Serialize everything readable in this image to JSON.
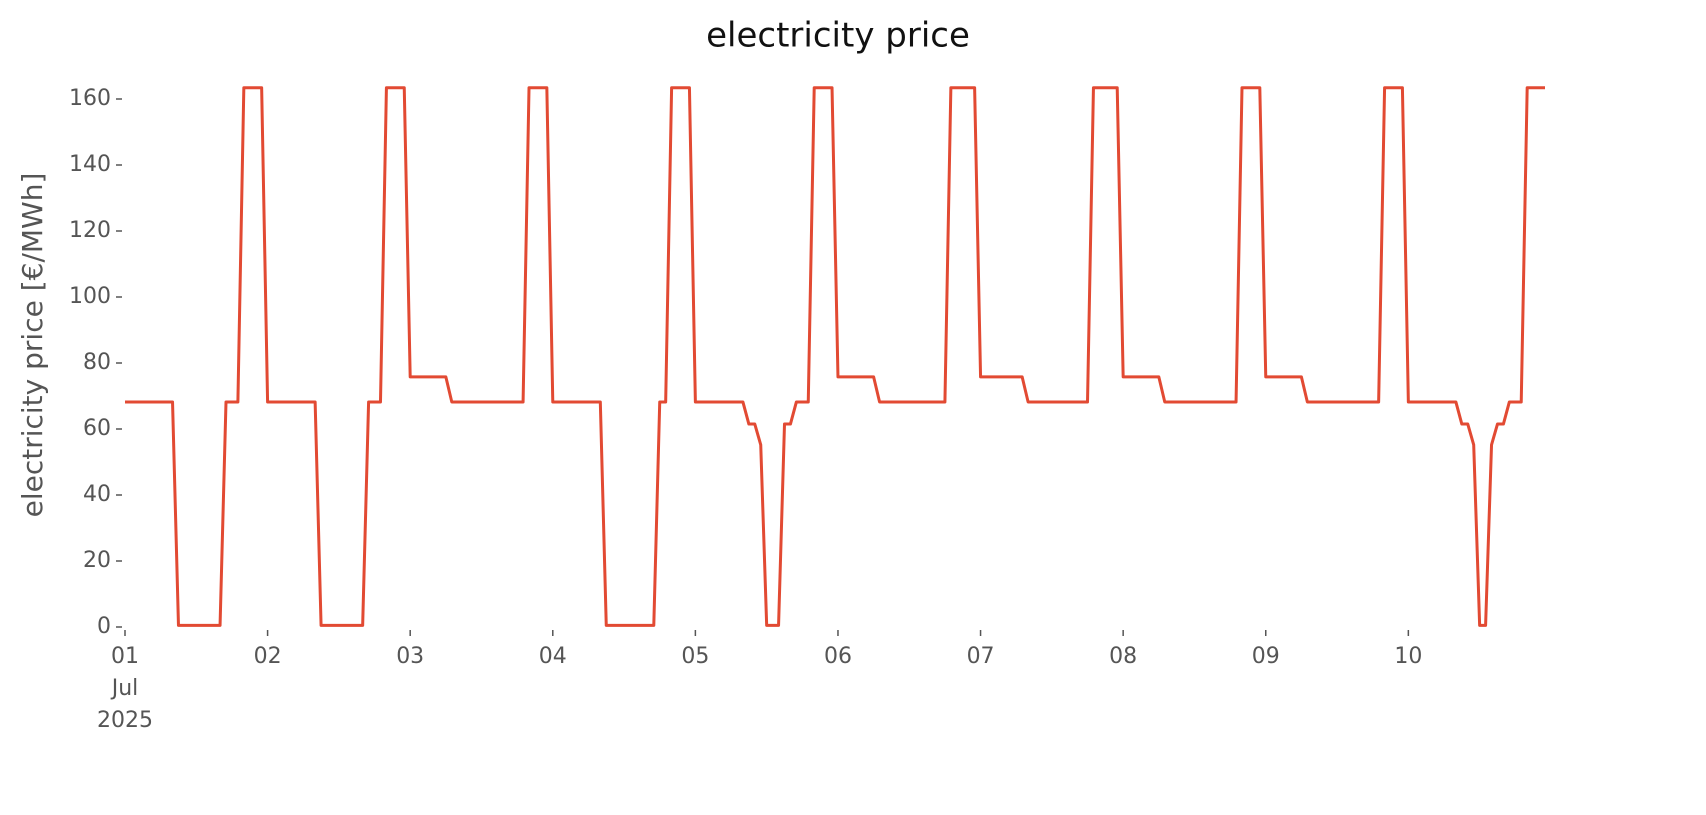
{
  "chart_data": {
    "type": "line",
    "title": "electricity price",
    "y_label": "electricity price [€/MWh]",
    "color": "#e24a33",
    "x": [
      "2025-07-01T00:00",
      "2025-07-01T08:00",
      "2025-07-01T09:00",
      "2025-07-01T16:00",
      "2025-07-01T17:00",
      "2025-07-01T19:00",
      "2025-07-01T20:00",
      "2025-07-01T23:00",
      "2025-07-02T00:00",
      "2025-07-02T08:00",
      "2025-07-02T09:00",
      "2025-07-02T16:00",
      "2025-07-02T17:00",
      "2025-07-02T19:00",
      "2025-07-02T20:00",
      "2025-07-02T23:00",
      "2025-07-03T00:00",
      "2025-07-03T06:00",
      "2025-07-03T07:00",
      "2025-07-03T19:00",
      "2025-07-03T20:00",
      "2025-07-03T23:00",
      "2025-07-04T00:00",
      "2025-07-04T08:00",
      "2025-07-04T09:00",
      "2025-07-04T17:00",
      "2025-07-04T18:00",
      "2025-07-04T19:00",
      "2025-07-04T20:00",
      "2025-07-04T23:00",
      "2025-07-05T00:00",
      "2025-07-05T08:00",
      "2025-07-05T09:00",
      "2025-07-05T10:00",
      "2025-07-05T11:00",
      "2025-07-05T12:00",
      "2025-07-05T14:00",
      "2025-07-05T15:00",
      "2025-07-05T16:00",
      "2025-07-05T17:00",
      "2025-07-05T19:00",
      "2025-07-05T20:00",
      "2025-07-05T23:00",
      "2025-07-06T00:00",
      "2025-07-06T06:00",
      "2025-07-06T07:00",
      "2025-07-06T18:00",
      "2025-07-06T19:00",
      "2025-07-06T23:00",
      "2025-07-07T00:00",
      "2025-07-07T07:00",
      "2025-07-07T08:00",
      "2025-07-07T18:00",
      "2025-07-07T19:00",
      "2025-07-07T23:00",
      "2025-07-08T00:00",
      "2025-07-08T06:00",
      "2025-07-08T07:00",
      "2025-07-08T19:00",
      "2025-07-08T20:00",
      "2025-07-08T23:00",
      "2025-07-09T00:00",
      "2025-07-09T06:00",
      "2025-07-09T07:00",
      "2025-07-09T19:00",
      "2025-07-09T20:00",
      "2025-07-09T23:00",
      "2025-07-10T00:00",
      "2025-07-10T08:00",
      "2025-07-10T09:00",
      "2025-07-10T10:00",
      "2025-07-10T11:00",
      "2025-07-10T12:00",
      "2025-07-10T13:00",
      "2025-07-10T14:00",
      "2025-07-10T15:00",
      "2025-07-10T16:00",
      "2025-07-10T17:00",
      "2025-07-10T19:00",
      "2025-07-10T20:00",
      "2025-07-10T23:00"
    ],
    "values": [
      68.2,
      68.2,
      0.5,
      0.5,
      68.2,
      68.2,
      163.4,
      163.4,
      68.2,
      68.2,
      0.5,
      0.5,
      68.2,
      68.2,
      163.4,
      163.4,
      75.8,
      75.8,
      68.2,
      68.2,
      163.4,
      163.4,
      68.2,
      68.2,
      0.5,
      0.5,
      68.2,
      68.2,
      163.4,
      163.4,
      68.2,
      68.2,
      61.5,
      61.5,
      55.2,
      0.5,
      0.5,
      61.5,
      61.5,
      68.2,
      68.2,
      163.4,
      163.4,
      75.8,
      75.8,
      68.2,
      68.2,
      163.4,
      163.4,
      75.8,
      75.8,
      68.2,
      68.2,
      163.4,
      163.4,
      75.8,
      75.8,
      68.2,
      68.2,
      163.4,
      163.4,
      75.8,
      75.8,
      68.2,
      68.2,
      163.4,
      163.4,
      68.2,
      68.2,
      61.5,
      61.5,
      55.2,
      0.5,
      0.5,
      55.2,
      61.5,
      61.5,
      68.2,
      68.2,
      163.4,
      163.4
    ],
    "xlim": [
      "2025-07-01T00:00",
      "2025-07-10T23:00"
    ],
    "xticks": [
      {
        "value": "2025-07-01T00:00",
        "label": "01\nJul\n2025"
      },
      {
        "value": "2025-07-02T00:00",
        "label": "02"
      },
      {
        "value": "2025-07-03T00:00",
        "label": "03"
      },
      {
        "value": "2025-07-04T00:00",
        "label": "04"
      },
      {
        "value": "2025-07-05T00:00",
        "label": "05"
      },
      {
        "value": "2025-07-06T00:00",
        "label": "06"
      },
      {
        "value": "2025-07-07T00:00",
        "label": "07"
      },
      {
        "value": "2025-07-08T00:00",
        "label": "08"
      },
      {
        "value": "2025-07-09T00:00",
        "label": "09"
      },
      {
        "value": "2025-07-10T00:00",
        "label": "10"
      }
    ],
    "ylim": [
      0,
      165
    ],
    "yticks": [
      0,
      20,
      40,
      60,
      80,
      100,
      120,
      140,
      160
    ],
    "grid": false
  }
}
